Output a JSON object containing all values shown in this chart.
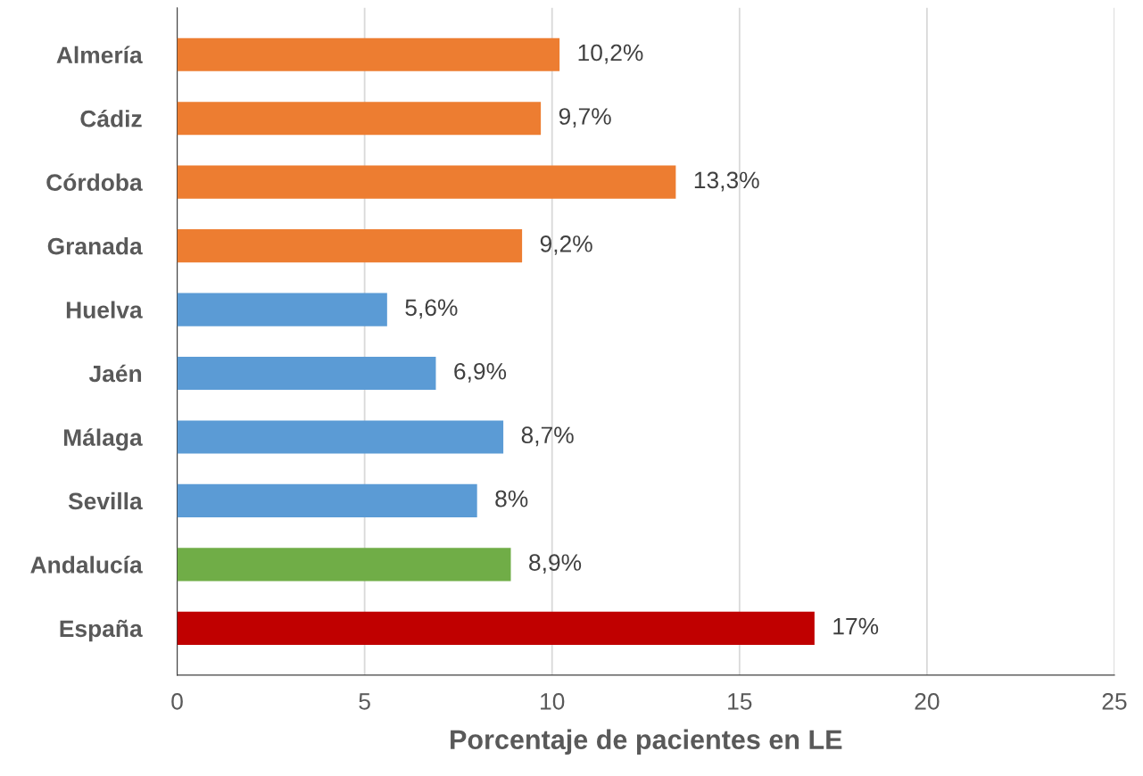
{
  "chart_data": {
    "type": "bar",
    "orientation": "horizontal",
    "xlabel": "Porcentaje de pacientes en LE",
    "categories": [
      "Almería",
      "Cádiz",
      "Córdoba",
      "Granada",
      "Huelva",
      "Jaén",
      "Málaga",
      "Sevilla",
      "Andalucía",
      "España"
    ],
    "values": [
      10.2,
      9.7,
      13.3,
      9.2,
      5.6,
      6.9,
      8.7,
      8,
      8.9,
      17
    ],
    "value_labels": [
      "10,2%",
      "9,7%",
      "13,3%",
      "9,2%",
      "5,6%",
      "6,9%",
      "8,7%",
      "8%",
      "8,9%",
      "17%"
    ],
    "colors": [
      "#ed7d31",
      "#ed7d31",
      "#ed7d31",
      "#ed7d31",
      "#5b9bd5",
      "#5b9bd5",
      "#5b9bd5",
      "#5b9bd5",
      "#70ad47",
      "#c00000"
    ],
    "xlim": [
      0,
      25
    ],
    "xticks": [
      0,
      5,
      10,
      15,
      20,
      25
    ],
    "grid": "x",
    "legend": false
  }
}
